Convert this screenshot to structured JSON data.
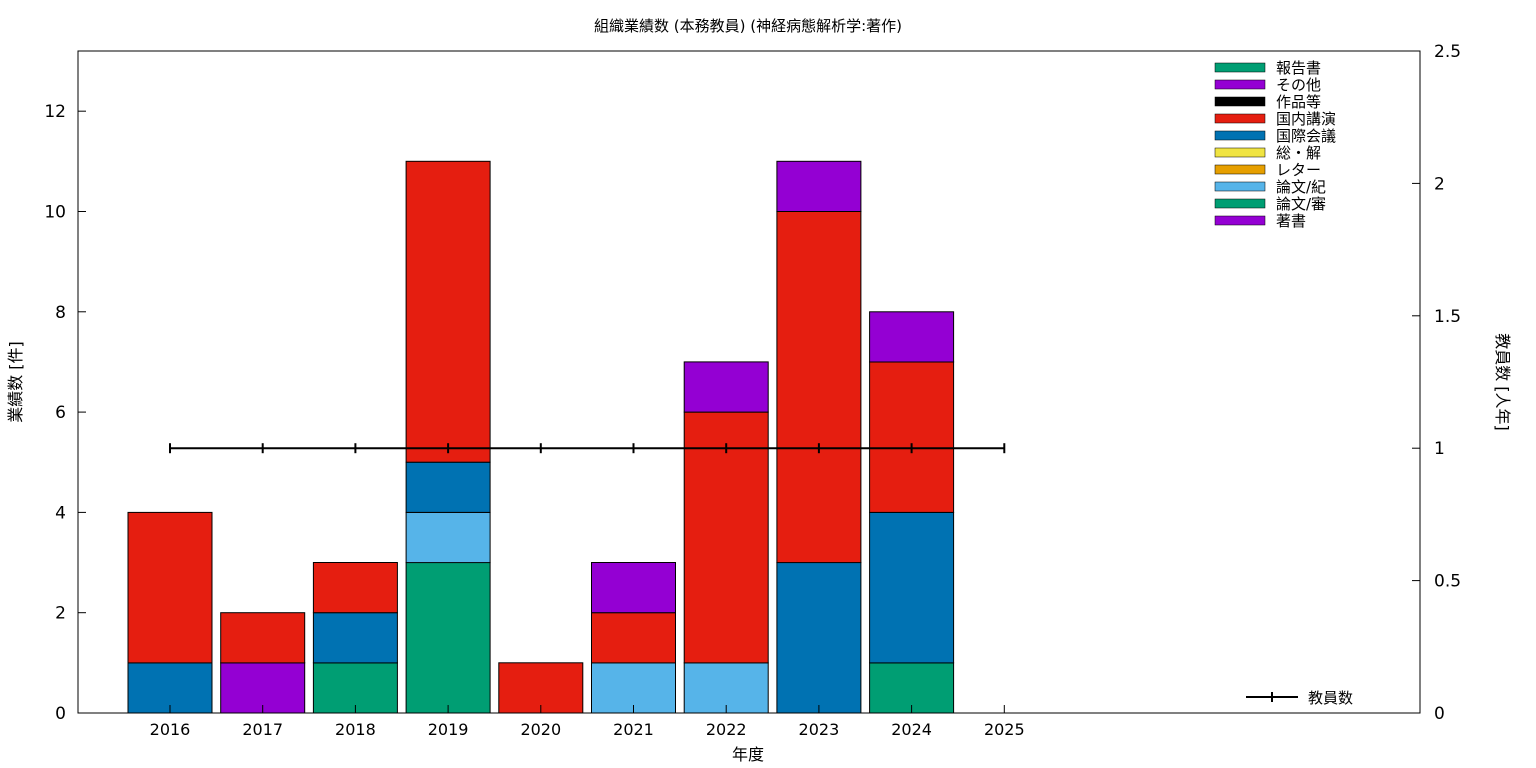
{
  "chart_data": {
    "type": "bar",
    "stacked": true,
    "title": "組織業績数 (本務教員) (神経病態解析学:著作)",
    "xlabel": "年度",
    "ylabel": "業績数 [件]",
    "y2label": "教員数 [人年]",
    "categories": [
      "2016",
      "2017",
      "2018",
      "2019",
      "2020",
      "2021",
      "2022",
      "2023",
      "2024",
      "2025"
    ],
    "ylim": [
      0,
      13.2
    ],
    "y2lim": [
      0,
      2.5
    ],
    "yticks": [
      0,
      2,
      4,
      6,
      8,
      10,
      12
    ],
    "y2ticks": [
      0,
      0.5,
      1,
      1.5,
      2,
      2.5
    ],
    "y2ticklabels": [
      "0",
      "0.5",
      "1",
      "1.5",
      "2",
      "2.5"
    ],
    "grid": false,
    "legend_position": "top-right",
    "series": [
      {
        "name": "著書",
        "color": "#9400d3",
        "values": [
          0,
          1,
          0,
          0,
          0,
          0,
          0,
          0,
          0,
          0
        ]
      },
      {
        "name": "論文/審",
        "color": "#009e73",
        "values": [
          0,
          0,
          1,
          3,
          0,
          0,
          0,
          0,
          1,
          0
        ]
      },
      {
        "name": "論文/紀",
        "color": "#56b4e9",
        "values": [
          0,
          0,
          0,
          1,
          0,
          1,
          1,
          0,
          0,
          0
        ]
      },
      {
        "name": "レター",
        "color": "#e69f00",
        "values": [
          0,
          0,
          0,
          0,
          0,
          0,
          0,
          0,
          0,
          0
        ]
      },
      {
        "name": "総・解",
        "color": "#f0e442",
        "values": [
          0,
          0,
          0,
          0,
          0,
          0,
          0,
          0,
          0,
          0
        ]
      },
      {
        "name": "国際会議",
        "color": "#0072b2",
        "values": [
          1,
          0,
          1,
          1,
          0,
          0,
          0,
          3,
          3,
          0
        ]
      },
      {
        "name": "国内講演",
        "color": "#e51e10",
        "values": [
          3,
          1,
          1,
          6,
          1,
          1,
          5,
          7,
          3,
          0
        ]
      },
      {
        "name": "作品等",
        "color": "#000000",
        "values": [
          0,
          0,
          0,
          0,
          0,
          0,
          0,
          0,
          0,
          0
        ]
      },
      {
        "name": "その他",
        "color": "#9400d3",
        "values": [
          0,
          0,
          0,
          0,
          0,
          1,
          1,
          1,
          1,
          0
        ]
      },
      {
        "name": "報告書",
        "color": "#009e73",
        "values": [
          0,
          0,
          0,
          0,
          0,
          0,
          0,
          0,
          0,
          0
        ]
      }
    ],
    "line_series": {
      "name": "教員数",
      "color": "#000000",
      "axis": "right",
      "values": [
        1,
        1,
        1,
        1,
        1,
        1,
        1,
        1,
        1,
        1
      ]
    }
  }
}
